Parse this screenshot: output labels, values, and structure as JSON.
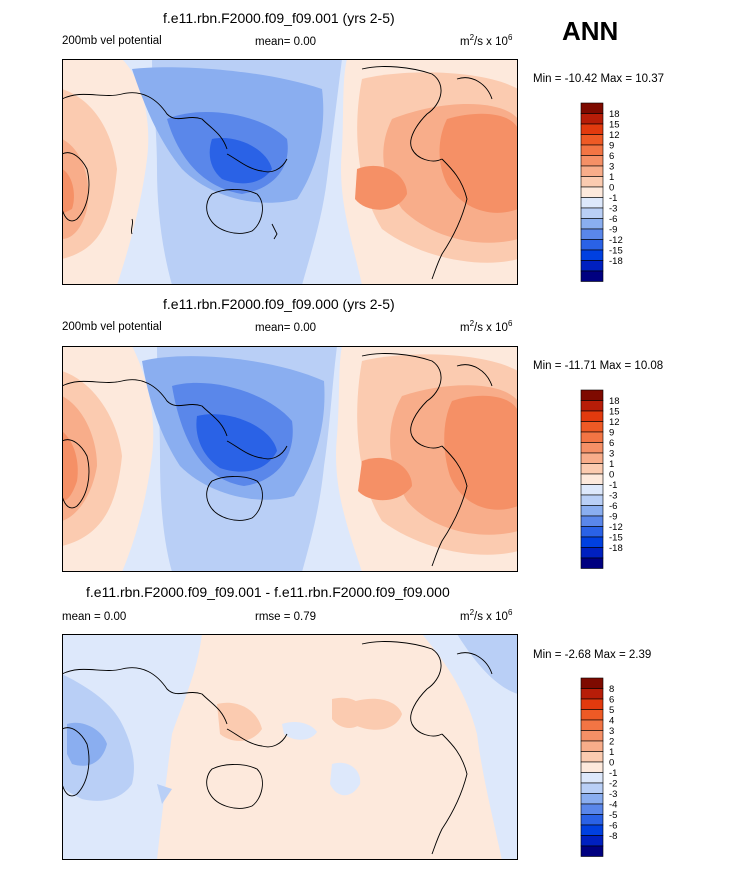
{
  "season": "ANN",
  "scale_a": [
    "#000080",
    "#0020c0",
    "#0040e0",
    "#2a62e6",
    "#5a87ea",
    "#8aaef0",
    "#b9cff6",
    "#dde8fb",
    "#fde9dc",
    "#fbcbb0",
    "#f8ad8a",
    "#f59066",
    "#f27544",
    "#ee5a25",
    "#e23a0e",
    "#b71d08",
    "#7e0a00"
  ],
  "scale_b": [
    "#000080",
    "#0020c0",
    "#0040e0",
    "#2a62e6",
    "#5a87ea",
    "#8aaef0",
    "#b9cff6",
    "#dde8fb",
    "#fde9dc",
    "#fbcbb0",
    "#f8ad8a",
    "#f59066",
    "#f27544",
    "#ee5a25",
    "#e23a0e",
    "#b71d08",
    "#7e0a00"
  ],
  "chart_data": [
    {
      "type": "heatmap",
      "title": "f.e11.rbn.F2000.f09_f09.001 (yrs 2-5)",
      "left_label": "200mb vel potential",
      "mean_label": "mean=   0.00",
      "units_base": "m",
      "units_sup": "2",
      "units_rest": "/s x 10",
      "units_exp": "6",
      "minmax": "Min = -10.42 Max =  10.37",
      "min": -10.42,
      "max": 10.37,
      "levels": [
        "18",
        "15",
        "12",
        "9",
        "6",
        "3",
        "1",
        "0",
        "-1",
        "-3",
        "-6",
        "-9",
        "-12",
        "-15",
        "-18"
      ]
    },
    {
      "type": "heatmap",
      "title": "f.e11.rbn.F2000.f09_f09.000 (yrs 2-5)",
      "left_label": "200mb vel potential",
      "mean_label": "mean=   0.00",
      "units_base": "m",
      "units_sup": "2",
      "units_rest": "/s x 10",
      "units_exp": "6",
      "minmax": "Min = -11.71 Max =  10.08",
      "min": -11.71,
      "max": 10.08,
      "levels": [
        "18",
        "15",
        "12",
        "9",
        "6",
        "3",
        "1",
        "0",
        "-1",
        "-3",
        "-6",
        "-9",
        "-12",
        "-15",
        "-18"
      ]
    },
    {
      "type": "heatmap",
      "title": "f.e11.rbn.F2000.f09_f09.001 - f.e11.rbn.F2000.f09_f09.000",
      "left_label": "mean =   0.00",
      "mean_label": "rmse =   0.79",
      "units_base": "m",
      "units_sup": "2",
      "units_rest": "/s x 10",
      "units_exp": "6",
      "minmax": "Min =  -2.68 Max =   2.39",
      "min": -2.68,
      "max": 2.39,
      "levels": [
        "8",
        "6",
        "5",
        "4",
        "3",
        "2",
        "1",
        "0",
        "-1",
        "-2",
        "-3",
        "-4",
        "-5",
        "-6",
        "-8"
      ]
    }
  ]
}
